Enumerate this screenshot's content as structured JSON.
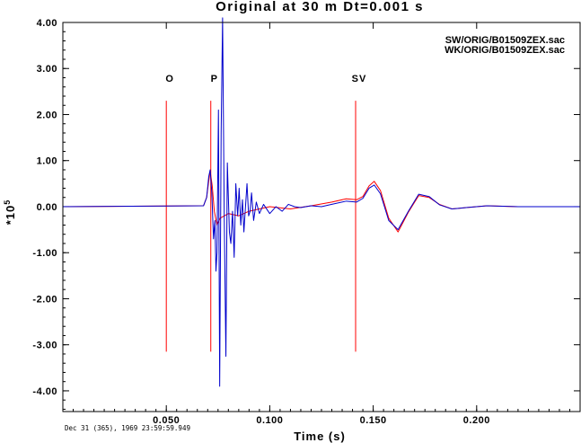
{
  "chart_data": {
    "type": "line",
    "title": "Original at 30 m Dt=0.001 s",
    "xlabel": "Time (s)",
    "ylabel": "*10",
    "ylabel_exponent": "5",
    "xlim": [
      0.0,
      0.25
    ],
    "ylim": [
      -4.45,
      4.0
    ],
    "x_ticks": [
      0.05,
      0.1,
      0.15,
      0.2
    ],
    "x_tick_labels": [
      "0.050",
      "0.100",
      "0.150",
      "0.200"
    ],
    "y_ticks": [
      4,
      3,
      2,
      1,
      0,
      -1,
      -2,
      -3,
      -4
    ],
    "y_tick_labels": [
      "4.00",
      "3.00",
      "2.00",
      "1.00",
      "0.00",
      "-1.00",
      "-2.00",
      "-3.00",
      "-4.00"
    ],
    "grid": false,
    "legend_position": "top-right",
    "timestamp": "Dec 31 (365), 1969 23:59:59.949",
    "markers": [
      {
        "label": "O",
        "x": 0.05,
        "ymin": -3.15,
        "ymax": 2.3,
        "color": "#ff0000"
      },
      {
        "label": "P",
        "x": 0.0715,
        "ymin": -3.15,
        "ymax": 2.3,
        "color": "#ff0000"
      },
      {
        "label": "SV",
        "x": 0.1415,
        "ymin": -3.15,
        "ymax": 2.3,
        "color": "#ff0000"
      }
    ],
    "series": [
      {
        "name": "SW/ORIG/B01509ZEX.sac",
        "color": "#ff0000",
        "x": [
          0.0,
          0.068,
          0.0695,
          0.0705,
          0.0712,
          0.0722,
          0.0732,
          0.0745,
          0.076,
          0.08,
          0.085,
          0.09,
          0.095,
          0.1,
          0.11,
          0.12,
          0.13,
          0.137,
          0.142,
          0.145,
          0.148,
          0.1505,
          0.1535,
          0.1575,
          0.162,
          0.167,
          0.172,
          0.177,
          0.182,
          0.188,
          0.195,
          0.205,
          0.22,
          0.25
        ],
        "y": [
          0.0,
          0.02,
          0.2,
          0.55,
          0.78,
          0.45,
          -0.1,
          -0.4,
          -0.25,
          -0.15,
          -0.2,
          -0.1,
          -0.05,
          0.0,
          -0.05,
          0.02,
          0.1,
          0.17,
          0.15,
          0.22,
          0.45,
          0.55,
          0.35,
          -0.25,
          -0.55,
          -0.12,
          0.24,
          0.2,
          0.05,
          -0.05,
          -0.02,
          0.02,
          0.0,
          0.0
        ]
      },
      {
        "name": "WK/ORIG/B01509ZEX.sac",
        "color": "#0000cc",
        "x": [
          0.0,
          0.068,
          0.0695,
          0.0705,
          0.0712,
          0.072,
          0.0728,
          0.0735,
          0.074,
          0.0745,
          0.0752,
          0.0758,
          0.0765,
          0.0772,
          0.078,
          0.0788,
          0.0795,
          0.0805,
          0.0812,
          0.082,
          0.0828,
          0.0836,
          0.0845,
          0.0852,
          0.086,
          0.0868,
          0.0875,
          0.0882,
          0.089,
          0.0898,
          0.0905,
          0.0912,
          0.0922,
          0.0935,
          0.095,
          0.097,
          0.1,
          0.103,
          0.106,
          0.109,
          0.112,
          0.115,
          0.12,
          0.125,
          0.13,
          0.137,
          0.142,
          0.145,
          0.148,
          0.1505,
          0.1535,
          0.1575,
          0.162,
          0.167,
          0.172,
          0.177,
          0.182,
          0.188,
          0.195,
          0.205,
          0.22,
          0.25
        ],
        "y": [
          0.0,
          0.02,
          0.2,
          0.65,
          0.8,
          0.3,
          -0.7,
          -0.3,
          -1.4,
          -1.0,
          2.1,
          -3.9,
          1.6,
          4.1,
          -0.2,
          -3.25,
          0.95,
          -0.55,
          -0.8,
          -0.1,
          -1.1,
          0.5,
          -0.2,
          0.4,
          -0.4,
          0.15,
          -0.55,
          -0.05,
          0.5,
          -0.2,
          -0.1,
          0.3,
          -0.3,
          0.1,
          -0.15,
          0.05,
          -0.15,
          0.0,
          -0.1,
          0.05,
          0.0,
          -0.02,
          0.02,
          0.0,
          0.05,
          0.12,
          0.1,
          0.18,
          0.4,
          0.47,
          0.28,
          -0.3,
          -0.5,
          -0.1,
          0.27,
          0.22,
          0.04,
          -0.05,
          -0.02,
          0.02,
          0.0,
          0.0
        ]
      }
    ]
  }
}
